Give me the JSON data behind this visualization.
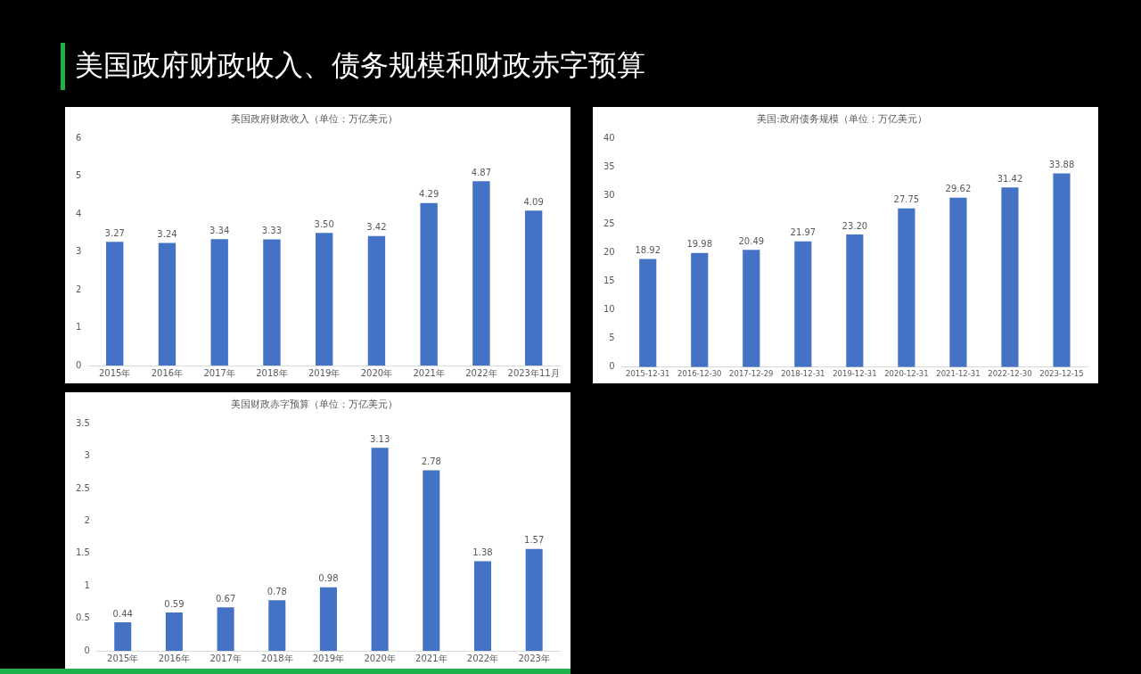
{
  "chart_data": [
    {
      "type": "bar",
      "title": "美国政府财政收入（单位：万亿美元）",
      "annotations": [
        "美国政府财政收入、债务规模和财政赤字预算"
      ],
      "categories": [
        "2015年",
        "2016年",
        "2017年",
        "2018年",
        "2019年",
        "2020年",
        "2021年",
        "2022年",
        "2023年11月"
      ],
      "values": [
        3.27,
        3.24,
        3.34,
        3.33,
        3.5,
        3.42,
        4.29,
        4.87,
        4.09
      ],
      "value_labels": [
        "3.27",
        "3.24",
        "3.34",
        "3.33",
        "3.50",
        "3.42",
        "4.29",
        "4.87",
        "4.09"
      ],
      "color": "#4472c4",
      "ylim": [
        0,
        6
      ],
      "yticks": [
        0,
        1,
        2,
        3,
        4,
        5,
        6
      ],
      "grid": false
    },
    {
      "type": "bar",
      "title": "美国:政府债务规模（单位：万亿美元）",
      "categories": [
        "2015-12-31",
        "2016-12-30",
        "2017-12-29",
        "2018-12-31",
        "2019-12-31",
        "2020-12-31",
        "2021-12-31",
        "2022-12-30",
        "2023-12-15"
      ],
      "values": [
        18.92,
        19.98,
        20.49,
        21.97,
        23.2,
        27.75,
        29.62,
        31.42,
        33.88
      ],
      "value_labels": [
        "18.92",
        "19.98",
        "20.49",
        "21.97",
        "23.20",
        "27.75",
        "29.62",
        "31.42",
        "33.88"
      ],
      "color": "#4472c4",
      "ylim": [
        0,
        40
      ],
      "yticks": [
        0,
        5,
        10,
        15,
        20,
        25,
        30,
        35,
        40
      ],
      "grid": false
    },
    {
      "type": "bar",
      "title": "美国财政赤字预算（单位：万亿美元）",
      "categories": [
        "2015年",
        "2016年",
        "2017年",
        "2018年",
        "2019年",
        "2020年",
        "2021年",
        "2022年",
        "2023年"
      ],
      "values": [
        0.44,
        0.59,
        0.67,
        0.78,
        0.98,
        3.13,
        2.78,
        1.38,
        1.57
      ],
      "data_labels": true,
      "color": "#4472c4",
      "ylim": [
        0,
        3.5
      ],
      "yticks": [
        0,
        0.5,
        1,
        1.5,
        2,
        2.5,
        3,
        3.5
      ],
      "grid": false
    }
  ]
}
